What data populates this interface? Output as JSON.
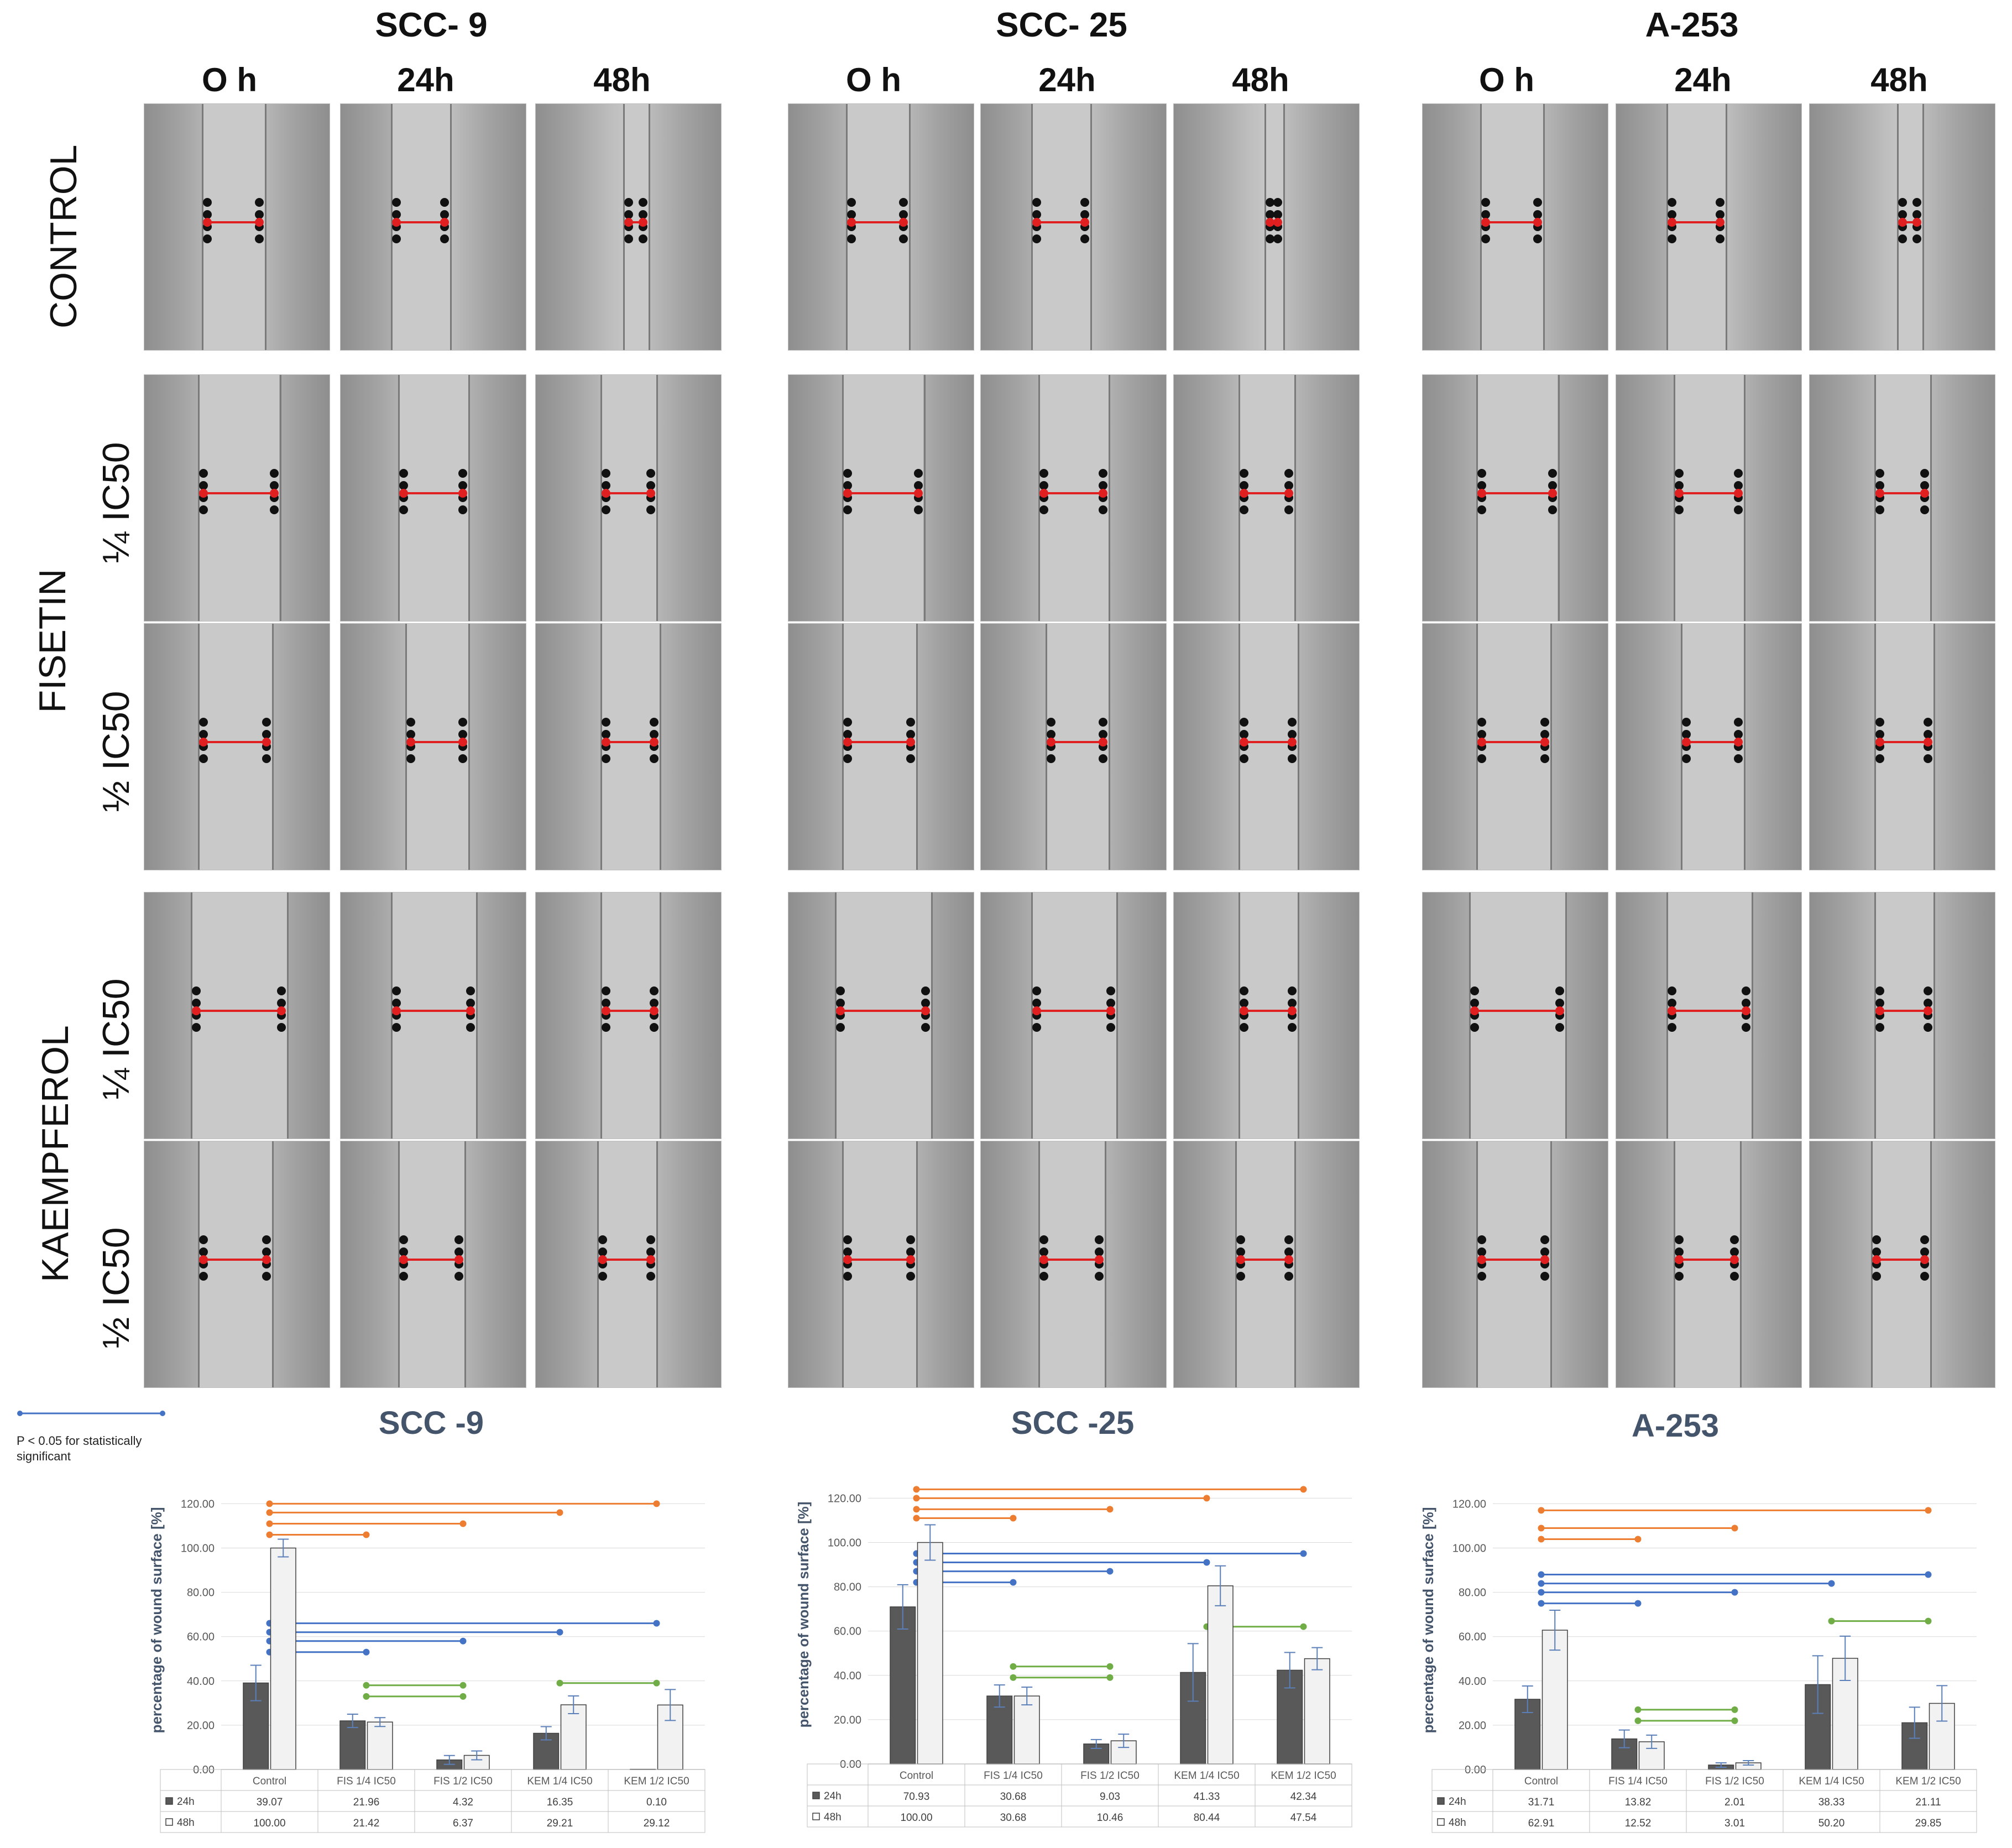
{
  "figure": {
    "cell_lines": [
      "SCC- 9",
      "SCC- 25",
      "A-253"
    ],
    "time_labels": [
      "O h",
      "24h",
      "48h"
    ],
    "group_labels": [
      "CONTROL",
      "FISETIN",
      "KAEMPFEROL"
    ],
    "dose_labels": [
      "¼ IC50",
      "½ IC50",
      "¼ IC50",
      "½ IC50"
    ],
    "legend_note": "P < 0.05  for statistically significant"
  },
  "colors": {
    "bar_24h": "#595959",
    "bar_48h": "#f2f2f2",
    "bar_outline": "#404040",
    "sig_blue": "#4472c4",
    "sig_orange": "#ed7d31",
    "sig_green": "#70ad47",
    "error": "#5b7fb8",
    "title": "#44546a"
  },
  "chart_data": [
    {
      "type": "bar",
      "title": "SCC -9",
      "ylabel": "percentage of wound surface [%]",
      "ylim": [
        0,
        120
      ],
      "yticks": [
        "0.00",
        "20.00",
        "40.00",
        "60.00",
        "80.00",
        "100.00",
        "120.00"
      ],
      "categories": [
        "Control",
        "FIS 1/4 IC50",
        "FIS 1/2 IC50",
        "KEM 1/4 IC50",
        "KEM 1/2 IC50"
      ],
      "series": [
        {
          "name": "24h",
          "values": [
            39.07,
            21.96,
            4.32,
            16.35,
            0.1
          ],
          "labels": [
            "39.07",
            "21.96",
            "4.32",
            "16.35",
            "0.10"
          ],
          "err": [
            8,
            3,
            2,
            3,
            0
          ]
        },
        {
          "name": "48h",
          "values": [
            100.0,
            21.42,
            6.37,
            29.21,
            29.12
          ],
          "labels": [
            "100.00",
            "21.42",
            "6.37",
            "29.21",
            "29.12"
          ],
          "err": [
            4,
            2,
            2,
            4,
            7
          ]
        }
      ],
      "significance": [
        {
          "color": "sig_orange",
          "y": 120,
          "from": 0,
          "to": 4
        },
        {
          "color": "sig_orange",
          "y": 116,
          "from": 0,
          "to": 3
        },
        {
          "color": "sig_orange",
          "y": 111,
          "from": 0,
          "to": 2
        },
        {
          "color": "sig_orange",
          "y": 106,
          "from": 0,
          "to": 1
        },
        {
          "color": "sig_blue",
          "y": 66,
          "from": 0,
          "to": 4
        },
        {
          "color": "sig_blue",
          "y": 62,
          "from": 0,
          "to": 3
        },
        {
          "color": "sig_blue",
          "y": 58,
          "from": 0,
          "to": 2
        },
        {
          "color": "sig_blue",
          "y": 53,
          "from": 0,
          "to": 1
        },
        {
          "color": "sig_green",
          "y": 38,
          "from": 1,
          "to": 2
        },
        {
          "color": "sig_green",
          "y": 33,
          "from": 1,
          "to": 2
        },
        {
          "color": "sig_green",
          "y": 39,
          "from": 3,
          "to": 4
        }
      ]
    },
    {
      "type": "bar",
      "title": "SCC -25",
      "ylabel": "percentage of wound surface [%]",
      "ylim": [
        0,
        120
      ],
      "yticks": [
        "0.00",
        "20.00",
        "40.00",
        "60.00",
        "80.00",
        "100.00",
        "120.00"
      ],
      "categories": [
        "Control",
        "FIS 1/4 IC50",
        "FIS 1/2 IC50",
        "KEM 1/4 IC50",
        "KEM 1/2 IC50"
      ],
      "series": [
        {
          "name": "24h",
          "values": [
            70.93,
            30.68,
            9.03,
            41.33,
            42.34
          ],
          "labels": [
            "70.93",
            "30.68",
            "9.03",
            "41.33",
            "42.34"
          ],
          "err": [
            10,
            5,
            2,
            13,
            8
          ]
        },
        {
          "name": "48h",
          "values": [
            100.0,
            30.68,
            10.46,
            80.44,
            47.54
          ],
          "labels": [
            "100.00",
            "30.68",
            "10.46",
            "80.44",
            "47.54"
          ],
          "err": [
            8,
            4,
            3,
            9,
            5
          ]
        }
      ],
      "significance": [
        {
          "color": "sig_orange",
          "y": 124,
          "from": 0,
          "to": 4
        },
        {
          "color": "sig_orange",
          "y": 120,
          "from": 0,
          "to": 3
        },
        {
          "color": "sig_orange",
          "y": 115,
          "from": 0,
          "to": 2
        },
        {
          "color": "sig_orange",
          "y": 111,
          "from": 0,
          "to": 1
        },
        {
          "color": "sig_blue",
          "y": 95,
          "from": 0,
          "to": 4
        },
        {
          "color": "sig_blue",
          "y": 91,
          "from": 0,
          "to": 3
        },
        {
          "color": "sig_blue",
          "y": 87,
          "from": 0,
          "to": 2
        },
        {
          "color": "sig_blue",
          "y": 82,
          "from": 0,
          "to": 1
        },
        {
          "color": "sig_green",
          "y": 44,
          "from": 1,
          "to": 2
        },
        {
          "color": "sig_green",
          "y": 39,
          "from": 1,
          "to": 2
        },
        {
          "color": "sig_green",
          "y": 62,
          "from": 3,
          "to": 4
        }
      ]
    },
    {
      "type": "bar",
      "title": "A-253",
      "ylabel": "percentage of wound surface [%]",
      "ylim": [
        0,
        120
      ],
      "yticks": [
        "0.00",
        "20.00",
        "40.00",
        "60.00",
        "80.00",
        "100.00",
        "120.00"
      ],
      "categories": [
        "Control",
        "FIS 1/4 IC50",
        "FIS 1/2 IC50",
        "KEM 1/4 IC50",
        "KEM 1/2 IC50"
      ],
      "series": [
        {
          "name": "24h",
          "values": [
            31.71,
            13.82,
            2.01,
            38.33,
            21.11
          ],
          "labels": [
            "31.71",
            "13.82",
            "2.01",
            "38.33",
            "21.11"
          ],
          "err": [
            6,
            4,
            1,
            13,
            7
          ]
        },
        {
          "name": "48h",
          "values": [
            62.91,
            12.52,
            3.01,
            50.2,
            29.85
          ],
          "labels": [
            "62.91",
            "12.52",
            "3.01",
            "50.20",
            "29.85"
          ],
          "err": [
            9,
            3,
            1,
            10,
            8
          ]
        }
      ],
      "significance": [
        {
          "color": "sig_orange",
          "y": 117,
          "from": 0,
          "to": 4
        },
        {
          "color": "sig_orange",
          "y": 109,
          "from": 0,
          "to": 2
        },
        {
          "color": "sig_orange",
          "y": 104,
          "from": 0,
          "to": 1
        },
        {
          "color": "sig_blue",
          "y": 88,
          "from": 0,
          "to": 4
        },
        {
          "color": "sig_blue",
          "y": 84,
          "from": 0,
          "to": 3
        },
        {
          "color": "sig_blue",
          "y": 80,
          "from": 0,
          "to": 2
        },
        {
          "color": "sig_blue",
          "y": 75,
          "from": 0,
          "to": 1
        },
        {
          "color": "sig_green",
          "y": 27,
          "from": 1,
          "to": 2
        },
        {
          "color": "sig_green",
          "y": 22,
          "from": 1,
          "to": 2
        },
        {
          "color": "sig_green",
          "y": 67,
          "from": 3,
          "to": 4
        }
      ]
    }
  ]
}
